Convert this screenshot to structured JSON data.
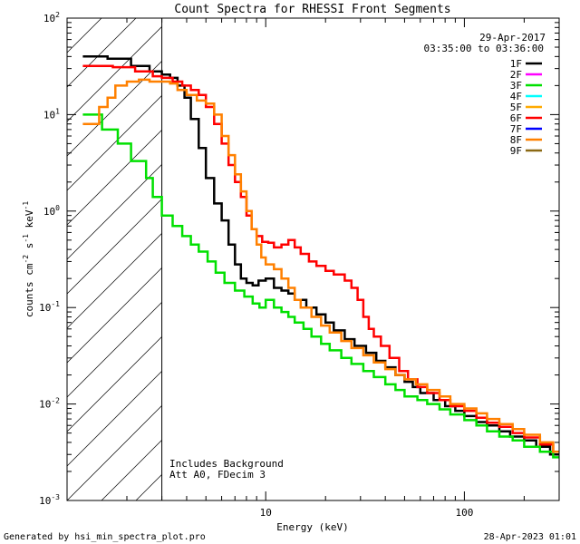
{
  "chart_data": {
    "type": "line",
    "title": "Count Spectra for RHESSI Front Segments",
    "xlabel": "Energy (keV)",
    "ylabel_parts": [
      "counts cm",
      "-2",
      " s",
      "-1",
      " keV",
      "-1"
    ],
    "xscale": "log",
    "yscale": "log",
    "xlim": [
      1,
      300
    ],
    "ylim": [
      0.001,
      100
    ],
    "x_tick_labels": [
      {
        "value": 10,
        "label": "10"
      },
      {
        "value": 100,
        "label": "100"
      }
    ],
    "y_tick_labels": [
      {
        "exp": 2,
        "label": "10",
        "sup": "2"
      },
      {
        "exp": 1,
        "label": "10",
        "sup": "1"
      },
      {
        "exp": 0,
        "label": "10",
        "sup": "0"
      },
      {
        "exp": -1,
        "label": "10",
        "sup": "-1"
      },
      {
        "exp": -2,
        "label": "10",
        "sup": "-2"
      },
      {
        "exp": -3,
        "label": "10",
        "sup": "-3"
      }
    ],
    "threshold_energy_kev": 3,
    "annotations": {
      "date": "29-Apr-2017",
      "time_range": "03:35:00 to 03:36:00",
      "note_line1": "Includes Background",
      "note_line2": "Att A0, FDecim 3"
    },
    "legend": [
      {
        "name": "1F",
        "color": "#000000"
      },
      {
        "name": "2F",
        "color": "#ff00ff"
      },
      {
        "name": "3F",
        "color": "#00e000"
      },
      {
        "name": "4F",
        "color": "#00ffff"
      },
      {
        "name": "5F",
        "color": "#ffaa00"
      },
      {
        "name": "6F",
        "color": "#ff0000"
      },
      {
        "name": "7F",
        "color": "#0000ff"
      },
      {
        "name": "8F",
        "color": "#ff8000"
      },
      {
        "name": "9F",
        "color": "#8b6914"
      }
    ],
    "series": [
      {
        "name": "1F",
        "color": "#000000",
        "points": [
          [
            1.2,
            40
          ],
          [
            1.6,
            38
          ],
          [
            2.1,
            32
          ],
          [
            2.6,
            28
          ],
          [
            3.0,
            26
          ],
          [
            3.3,
            24
          ],
          [
            3.6,
            20
          ],
          [
            3.9,
            15
          ],
          [
            4.2,
            9
          ],
          [
            4.6,
            4.5
          ],
          [
            5.0,
            2.2
          ],
          [
            5.5,
            1.2
          ],
          [
            6.0,
            0.8
          ],
          [
            6.5,
            0.45
          ],
          [
            7.0,
            0.28
          ],
          [
            7.5,
            0.2
          ],
          [
            8.0,
            0.18
          ],
          [
            8.6,
            0.17
          ],
          [
            9.2,
            0.19
          ],
          [
            10,
            0.2
          ],
          [
            11,
            0.16
          ],
          [
            12,
            0.15
          ],
          [
            13,
            0.14
          ],
          [
            14,
            0.12
          ],
          [
            16,
            0.1
          ],
          [
            18,
            0.085
          ],
          [
            20,
            0.07
          ],
          [
            22,
            0.058
          ],
          [
            25,
            0.047
          ],
          [
            28,
            0.04
          ],
          [
            32,
            0.034
          ],
          [
            36,
            0.028
          ],
          [
            40,
            0.024
          ],
          [
            45,
            0.02
          ],
          [
            50,
            0.017
          ],
          [
            55,
            0.015
          ],
          [
            60,
            0.013
          ],
          [
            70,
            0.011
          ],
          [
            80,
            0.0095
          ],
          [
            90,
            0.0085
          ],
          [
            100,
            0.0075
          ],
          [
            115,
            0.0065
          ],
          [
            130,
            0.006
          ],
          [
            150,
            0.0052
          ],
          [
            170,
            0.0046
          ],
          [
            200,
            0.0042
          ],
          [
            230,
            0.0036
          ],
          [
            270,
            0.003
          ]
        ]
      },
      {
        "name": "3F",
        "color": "#00e000",
        "points": [
          [
            1.2,
            10
          ],
          [
            1.4,
            10
          ],
          [
            1.5,
            7
          ],
          [
            1.8,
            5
          ],
          [
            2.1,
            3.3
          ],
          [
            2.5,
            2.2
          ],
          [
            2.7,
            1.4
          ],
          [
            3.0,
            0.9
          ],
          [
            3.4,
            0.7
          ],
          [
            3.8,
            0.55
          ],
          [
            4.2,
            0.45
          ],
          [
            4.6,
            0.38
          ],
          [
            5.1,
            0.3
          ],
          [
            5.6,
            0.23
          ],
          [
            6.2,
            0.18
          ],
          [
            7.0,
            0.15
          ],
          [
            7.8,
            0.13
          ],
          [
            8.6,
            0.11
          ],
          [
            9.3,
            0.1
          ],
          [
            10,
            0.12
          ],
          [
            11,
            0.1
          ],
          [
            12,
            0.09
          ],
          [
            13,
            0.08
          ],
          [
            14,
            0.07
          ],
          [
            15.5,
            0.06
          ],
          [
            17,
            0.05
          ],
          [
            19,
            0.042
          ],
          [
            21,
            0.036
          ],
          [
            24,
            0.03
          ],
          [
            27,
            0.026
          ],
          [
            31,
            0.022
          ],
          [
            35,
            0.019
          ],
          [
            40,
            0.016
          ],
          [
            45,
            0.014
          ],
          [
            50,
            0.012
          ],
          [
            58,
            0.011
          ],
          [
            65,
            0.01
          ],
          [
            75,
            0.0088
          ],
          [
            85,
            0.0078
          ],
          [
            100,
            0.0068
          ],
          [
            115,
            0.006
          ],
          [
            130,
            0.0052
          ],
          [
            150,
            0.0046
          ],
          [
            175,
            0.0042
          ],
          [
            200,
            0.0036
          ],
          [
            240,
            0.0032
          ],
          [
            280,
            0.0028
          ]
        ]
      },
      {
        "name": "6F",
        "color": "#ff0000",
        "points": [
          [
            1.2,
            32
          ],
          [
            1.7,
            31
          ],
          [
            2.2,
            28
          ],
          [
            2.7,
            25
          ],
          [
            3.0,
            24
          ],
          [
            3.4,
            22
          ],
          [
            3.8,
            20
          ],
          [
            4.2,
            18
          ],
          [
            4.6,
            16
          ],
          [
            5.0,
            12
          ],
          [
            5.5,
            8
          ],
          [
            6.0,
            5
          ],
          [
            6.5,
            3
          ],
          [
            7.0,
            2
          ],
          [
            7.5,
            1.4
          ],
          [
            8.0,
            0.9
          ],
          [
            8.5,
            0.65
          ],
          [
            9.0,
            0.55
          ],
          [
            9.6,
            0.48
          ],
          [
            10.3,
            0.47
          ],
          [
            11,
            0.42
          ],
          [
            12,
            0.45
          ],
          [
            13,
            0.5
          ],
          [
            14,
            0.42
          ],
          [
            15,
            0.36
          ],
          [
            16.5,
            0.3
          ],
          [
            18,
            0.27
          ],
          [
            20,
            0.24
          ],
          [
            22,
            0.22
          ],
          [
            25,
            0.19
          ],
          [
            27,
            0.16
          ],
          [
            29,
            0.12
          ],
          [
            31,
            0.08
          ],
          [
            33,
            0.06
          ],
          [
            35,
            0.05
          ],
          [
            38,
            0.04
          ],
          [
            42,
            0.03
          ],
          [
            47,
            0.022
          ],
          [
            52,
            0.018
          ],
          [
            58,
            0.015
          ],
          [
            65,
            0.013
          ],
          [
            75,
            0.011
          ],
          [
            85,
            0.0095
          ],
          [
            100,
            0.0085
          ],
          [
            115,
            0.0072
          ],
          [
            130,
            0.0064
          ],
          [
            150,
            0.0058
          ],
          [
            175,
            0.005
          ],
          [
            200,
            0.0045
          ],
          [
            240,
            0.0038
          ],
          [
            280,
            0.0032
          ]
        ]
      },
      {
        "name": "8F",
        "color": "#ff8000",
        "points": [
          [
            1.2,
            8
          ],
          [
            1.35,
            8
          ],
          [
            1.45,
            12
          ],
          [
            1.6,
            15
          ],
          [
            1.75,
            20
          ],
          [
            2.0,
            22
          ],
          [
            2.3,
            23
          ],
          [
            2.6,
            22
          ],
          [
            3.0,
            22
          ],
          [
            3.3,
            21
          ],
          [
            3.6,
            18
          ],
          [
            4.0,
            16
          ],
          [
            4.5,
            14
          ],
          [
            5.0,
            13
          ],
          [
            5.5,
            10
          ],
          [
            6.0,
            6
          ],
          [
            6.5,
            3.8
          ],
          [
            7.0,
            2.4
          ],
          [
            7.5,
            1.6
          ],
          [
            8.0,
            1.0
          ],
          [
            8.5,
            0.65
          ],
          [
            9.0,
            0.45
          ],
          [
            9.5,
            0.33
          ],
          [
            10,
            0.28
          ],
          [
            11,
            0.25
          ],
          [
            12,
            0.2
          ],
          [
            13,
            0.16
          ],
          [
            14,
            0.12
          ],
          [
            15,
            0.1
          ],
          [
            17,
            0.08
          ],
          [
            19,
            0.065
          ],
          [
            21,
            0.055
          ],
          [
            24,
            0.045
          ],
          [
            27,
            0.038
          ],
          [
            31,
            0.032
          ],
          [
            35,
            0.027
          ],
          [
            40,
            0.023
          ],
          [
            45,
            0.02
          ],
          [
            50,
            0.018
          ],
          [
            57,
            0.016
          ],
          [
            65,
            0.014
          ],
          [
            75,
            0.012
          ],
          [
            85,
            0.01
          ],
          [
            100,
            0.009
          ],
          [
            115,
            0.008
          ],
          [
            130,
            0.007
          ],
          [
            150,
            0.0062
          ],
          [
            175,
            0.0055
          ],
          [
            200,
            0.0048
          ],
          [
            240,
            0.004
          ],
          [
            280,
            0.0032
          ]
        ]
      }
    ]
  },
  "footer": {
    "left": "Generated by hsi_min_spectra_plot.pro",
    "right": "28-Apr-2023 01:01"
  }
}
